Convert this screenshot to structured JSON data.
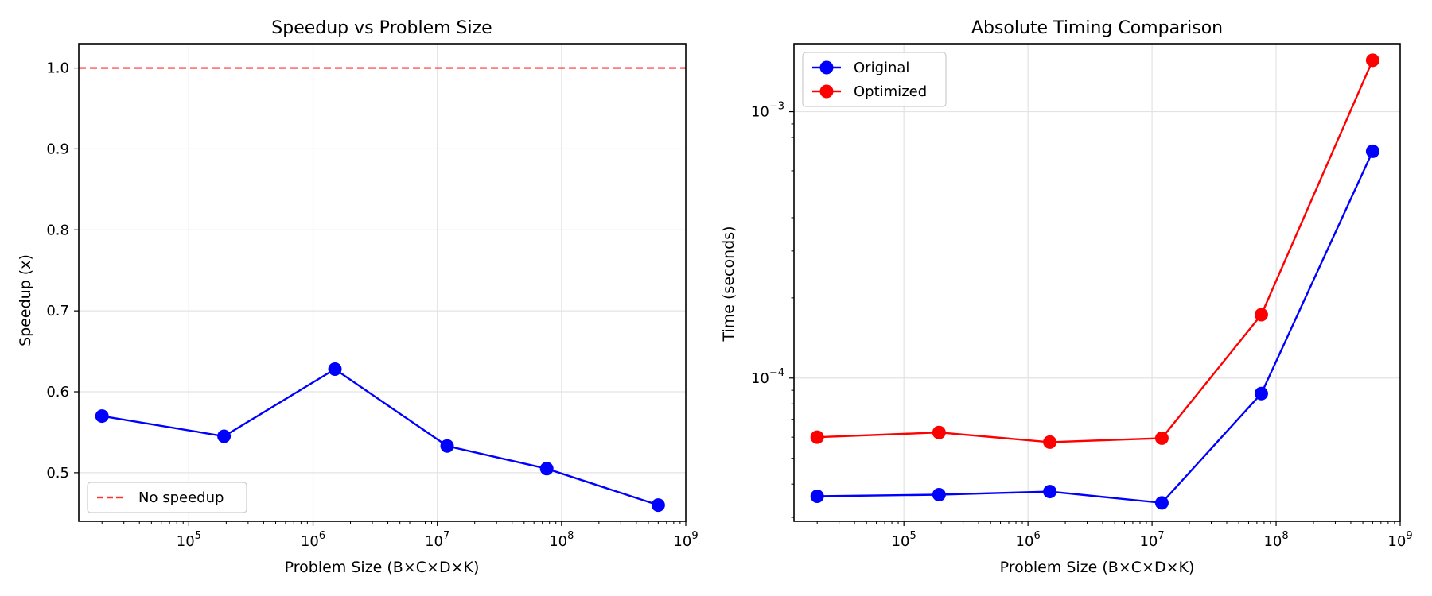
{
  "chart_data": [
    {
      "type": "line",
      "title": "Speedup vs Problem Size",
      "xlabel": "Problem Size (B×C×D×K)",
      "ylabel": "Speedup (x)",
      "xscale": "log",
      "xlim": [
        13000,
        1000000000
      ],
      "ylim": [
        0.44,
        1.03
      ],
      "xticks": [
        {
          "value": 100000,
          "base": "10",
          "exp": "5"
        },
        {
          "value": 1000000,
          "base": "10",
          "exp": "6"
        },
        {
          "value": 10000000,
          "base": "10",
          "exp": "7"
        },
        {
          "value": 100000000,
          "base": "10",
          "exp": "8"
        },
        {
          "value": 1000000000,
          "base": "10",
          "exp": "9"
        }
      ],
      "yticks": [
        {
          "value": 0.5,
          "label": "0.5"
        },
        {
          "value": 0.6,
          "label": "0.6"
        },
        {
          "value": 0.7,
          "label": "0.7"
        },
        {
          "value": 0.8,
          "label": "0.8"
        },
        {
          "value": 0.9,
          "label": "0.9"
        },
        {
          "value": 1.0,
          "label": "1.0"
        }
      ],
      "grid": true,
      "legend_position": "lower-left",
      "x": [
        20000,
        192000,
        1500000,
        12000000,
        76000000,
        600000000
      ],
      "series": [
        {
          "values": [
            0.57,
            0.545,
            0.628,
            0.533,
            0.505,
            0.46
          ],
          "color": "#0000ff",
          "marker": "circle"
        }
      ],
      "reference_lines": [
        {
          "name": "No speedup",
          "y": 1.0,
          "color": "#ff0000",
          "style": "dashed"
        }
      ],
      "legend": [
        {
          "name": "No speedup",
          "color": "#ff0000",
          "style": "dashed"
        }
      ]
    },
    {
      "type": "line",
      "title": "Absolute Timing Comparison",
      "xlabel": "Problem Size (B×C×D×K)",
      "ylabel": "Time (seconds)",
      "xscale": "log",
      "yscale": "log",
      "xlim": [
        13000,
        1000000000
      ],
      "ylim": [
        2.9e-05,
        0.0018
      ],
      "xticks": [
        {
          "value": 100000,
          "base": "10",
          "exp": "5"
        },
        {
          "value": 1000000,
          "base": "10",
          "exp": "6"
        },
        {
          "value": 10000000,
          "base": "10",
          "exp": "7"
        },
        {
          "value": 100000000,
          "base": "10",
          "exp": "8"
        },
        {
          "value": 1000000000,
          "base": "10",
          "exp": "9"
        }
      ],
      "yticks": [
        {
          "value": 0.0001,
          "base": "10",
          "exp": "−4"
        },
        {
          "value": 0.001,
          "base": "10",
          "exp": "−3"
        }
      ],
      "grid": true,
      "legend_position": "upper-left",
      "x": [
        20000,
        192000,
        1500000,
        12000000,
        76000000,
        600000000
      ],
      "series": [
        {
          "name": "Original",
          "values": [
            3.6e-05,
            3.65e-05,
            3.75e-05,
            3.4e-05,
            8.75e-05,
            0.00071
          ],
          "color": "#0000ff",
          "marker": "circle"
        },
        {
          "name": "Optimized",
          "values": [
            6e-05,
            6.25e-05,
            5.75e-05,
            5.95e-05,
            0.000173,
            0.00156
          ],
          "color": "#ff0000",
          "marker": "circle"
        }
      ],
      "legend": [
        {
          "name": "Original",
          "color": "#0000ff",
          "style": "solid"
        },
        {
          "name": "Optimized",
          "color": "#ff0000",
          "style": "solid"
        }
      ]
    }
  ]
}
